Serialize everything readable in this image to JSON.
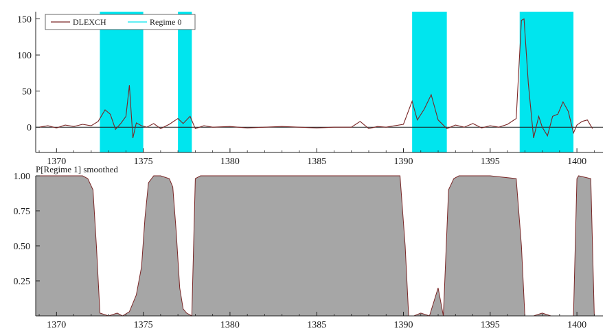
{
  "colors": {
    "regime_shade": "#00e5ee",
    "series_line": "#7a2626",
    "area_fill": "#a6a6a6",
    "area_line": "#7a2626",
    "axis": "#222222",
    "zero_line": "#1a1a1a"
  },
  "chart_data": [
    {
      "type": "line",
      "title": "",
      "xlabel": "",
      "ylabel": "",
      "xlim": [
        1368.8,
        1401.5
      ],
      "ylim": [
        -35,
        160
      ],
      "xticks": [
        1370,
        1375,
        1380,
        1385,
        1390,
        1395,
        1400
      ],
      "xtick_labels": [
        "1370",
        "1375",
        "1380",
        "1385",
        "1390",
        "1395",
        "1400"
      ],
      "yticks": [
        0,
        50,
        100,
        150
      ],
      "ytick_labels": [
        "0",
        "50",
        "100",
        "150"
      ],
      "grid": false,
      "legend": {
        "position": "top-left",
        "entries": [
          {
            "label": "DLEXCH",
            "color": "#7a2626"
          },
          {
            "label": "Regime 0",
            "color": "#00e5ee"
          }
        ]
      },
      "regime_0_intervals": [
        [
          1372.5,
          1375.0
        ],
        [
          1377.0,
          1377.8
        ],
        [
          1390.5,
          1392.5
        ],
        [
          1396.7,
          1399.8
        ]
      ],
      "series": [
        {
          "name": "DLEXCH",
          "x": [
            1369.0,
            1369.5,
            1370.0,
            1370.5,
            1371.0,
            1371.5,
            1372.0,
            1372.4,
            1372.8,
            1373.1,
            1373.4,
            1373.7,
            1374.0,
            1374.2,
            1374.4,
            1374.6,
            1374.9,
            1375.2,
            1375.6,
            1376.0,
            1376.5,
            1377.0,
            1377.3,
            1377.7,
            1378.0,
            1378.5,
            1379.0,
            1380.0,
            1381.0,
            1382.0,
            1383.0,
            1384.0,
            1385.0,
            1386.0,
            1387.0,
            1387.5,
            1388.0,
            1388.5,
            1389.0,
            1389.5,
            1390.0,
            1390.5,
            1390.8,
            1391.2,
            1391.6,
            1392.0,
            1392.5,
            1393.0,
            1393.5,
            1394.0,
            1394.5,
            1395.0,
            1395.5,
            1396.0,
            1396.5,
            1396.8,
            1396.95,
            1397.2,
            1397.5,
            1397.8,
            1398.0,
            1398.3,
            1398.6,
            1398.9,
            1399.2,
            1399.5,
            1399.8,
            1400.0,
            1400.3,
            1400.6,
            1400.9
          ],
          "values": [
            0,
            2,
            -1,
            3,
            1,
            4,
            2,
            8,
            24,
            18,
            -3,
            5,
            15,
            58,
            -15,
            6,
            2,
            0,
            5,
            -2,
            4,
            12,
            5,
            15,
            -2,
            2,
            0,
            1,
            -1,
            0,
            1,
            0,
            -1,
            0,
            0,
            8,
            -2,
            1,
            0,
            2,
            4,
            36,
            10,
            25,
            45,
            10,
            -2,
            3,
            0,
            5,
            -1,
            2,
            0,
            4,
            12,
            148,
            150,
            60,
            -15,
            15,
            0,
            -12,
            15,
            18,
            35,
            22,
            -8,
            3,
            8,
            10,
            -2
          ]
        }
      ]
    },
    {
      "type": "area",
      "title": "P[Regime 1] smoothed",
      "xlabel": "",
      "ylabel": "",
      "xlim": [
        1368.8,
        1401.5
      ],
      "ylim": [
        0,
        1
      ],
      "xticks": [
        1370,
        1375,
        1380,
        1385,
        1390,
        1395,
        1400
      ],
      "xtick_labels": [
        "1370",
        "1375",
        "1380",
        "1385",
        "1390",
        "1395",
        "1400"
      ],
      "yticks": [
        0.25,
        0.5,
        0.75,
        1.0
      ],
      "ytick_labels": [
        "0.25",
        "0.50",
        "0.75",
        "1.00"
      ],
      "grid": false,
      "series": [
        {
          "name": "P[Regime 1] smoothed",
          "x": [
            1368.8,
            1371.5,
            1371.8,
            1372.1,
            1372.3,
            1372.5,
            1373.0,
            1373.5,
            1373.8,
            1374.2,
            1374.6,
            1374.9,
            1375.1,
            1375.3,
            1375.6,
            1376.0,
            1376.5,
            1376.7,
            1376.9,
            1377.1,
            1377.3,
            1377.5,
            1377.8,
            1378.0,
            1378.3,
            1380.0,
            1385.0,
            1389.8,
            1390.1,
            1390.3,
            1390.6,
            1391.0,
            1391.5,
            1392.0,
            1392.3,
            1392.6,
            1392.9,
            1393.2,
            1395.0,
            1396.5,
            1396.8,
            1397.0,
            1397.5,
            1398.0,
            1398.5,
            1399.5,
            1399.8,
            1400.0,
            1400.1,
            1400.8,
            1401.0
          ],
          "values": [
            1.0,
            1.0,
            0.98,
            0.9,
            0.5,
            0.02,
            0.0,
            0.02,
            0.0,
            0.03,
            0.15,
            0.35,
            0.7,
            0.95,
            1.0,
            1.0,
            0.98,
            0.92,
            0.6,
            0.2,
            0.05,
            0.02,
            0.0,
            0.98,
            1.0,
            1.0,
            1.0,
            1.0,
            0.5,
            0.0,
            0.0,
            0.02,
            0.0,
            0.2,
            0.0,
            0.9,
            0.98,
            1.0,
            1.0,
            0.98,
            0.5,
            0.0,
            0.0,
            0.02,
            0.0,
            0.0,
            0.0,
            0.98,
            1.0,
            0.98,
            0.0
          ]
        }
      ]
    }
  ]
}
